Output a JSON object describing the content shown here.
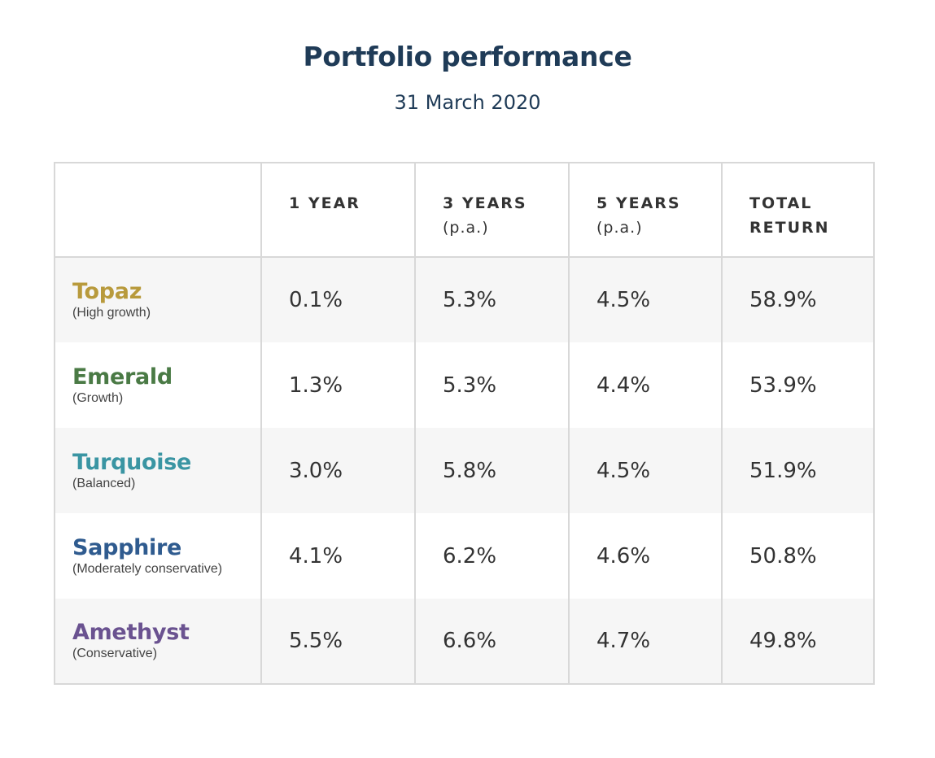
{
  "header": {
    "title": "Portfolio performance",
    "subtitle": "31 March 2020"
  },
  "colors": {
    "heading": "#1f3b57",
    "text": "#333333",
    "border": "#d8d8d8",
    "row_shade": "#f6f6f6"
  },
  "table": {
    "columns": [
      {
        "label": "",
        "sub": ""
      },
      {
        "label": "1 YEAR",
        "sub": ""
      },
      {
        "label": "3 YEARS",
        "sub": "(p.a.)"
      },
      {
        "label": "5 YEARS",
        "sub": "(p.a.)"
      },
      {
        "label": "TOTAL",
        "sub": "RETURN"
      }
    ],
    "rows": [
      {
        "name": "Topaz",
        "profile": "(High growth)",
        "color": "#b89a3c",
        "values": [
          "0.1%",
          "5.3%",
          "4.5%",
          "58.9%"
        ]
      },
      {
        "name": "Emerald",
        "profile": "(Growth)",
        "color": "#4a7a45",
        "values": [
          "1.3%",
          "5.3%",
          "4.4%",
          "53.9%"
        ]
      },
      {
        "name": "Turquoise",
        "profile": "(Balanced)",
        "color": "#3a95a3",
        "values": [
          "3.0%",
          "5.8%",
          "4.5%",
          "51.9%"
        ]
      },
      {
        "name": "Sapphire",
        "profile": "(Moderately conservative)",
        "color": "#2f5b8f",
        "values": [
          "4.1%",
          "6.2%",
          "4.6%",
          "50.8%"
        ]
      },
      {
        "name": "Amethyst",
        "profile": "(Conservative)",
        "color": "#6a5290",
        "values": [
          "5.5%",
          "6.6%",
          "4.7%",
          "49.8%"
        ]
      }
    ]
  }
}
